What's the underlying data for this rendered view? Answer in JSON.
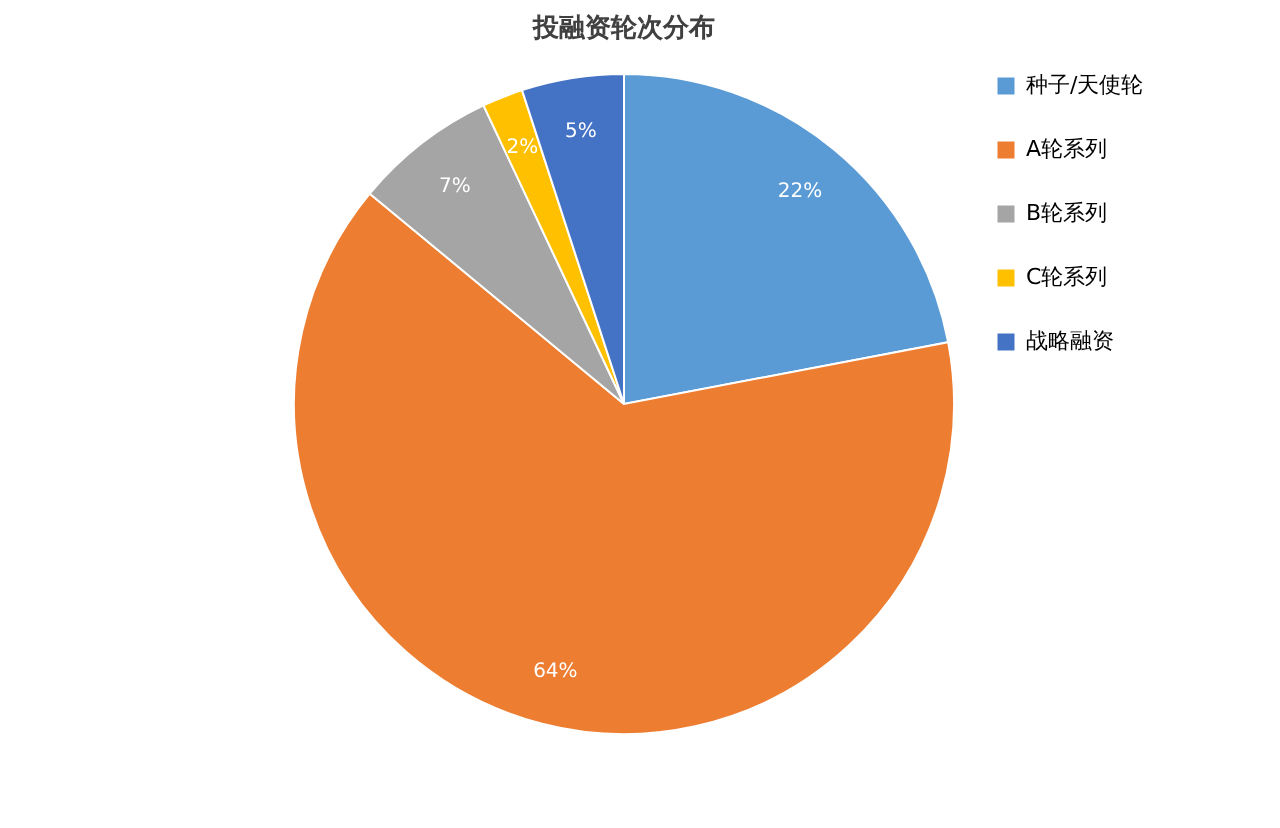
{
  "chart_data": {
    "type": "pie",
    "title": "投融资轮次分布",
    "categories": [
      "种子/天使轮",
      "A轮系列",
      "B轮系列",
      "C轮系列",
      "战略融资"
    ],
    "values": [
      22,
      64,
      7,
      2,
      5
    ],
    "value_labels": [
      "22%",
      "64%",
      "7%",
      "2%",
      "5%"
    ],
    "colors": [
      "#5b9bd5",
      "#ed7d31",
      "#a5a5a5",
      "#ffc000",
      "#4472c4"
    ],
    "legend": "right"
  }
}
